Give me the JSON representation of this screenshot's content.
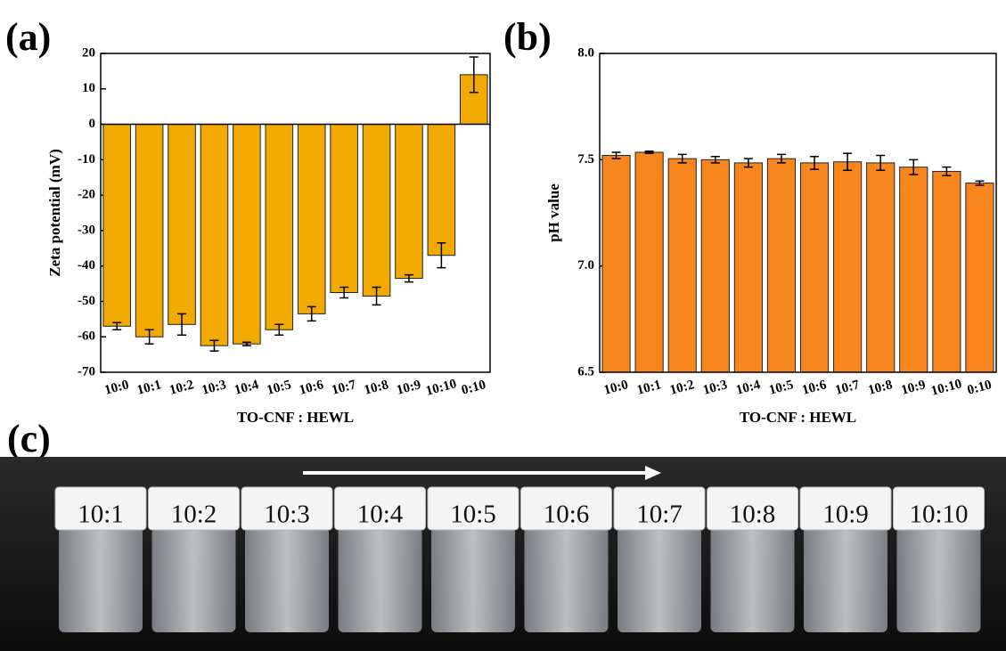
{
  "chart_data": [
    {
      "type": "bar",
      "panel_label": "(a)",
      "x_label": "TO-CNF : HEWL",
      "y_label": "Zeta potential (mV)",
      "categories": [
        "10:0",
        "10:1",
        "10:2",
        "10:3",
        "10:4",
        "10:5",
        "10:6",
        "10:7",
        "10:8",
        "10:9",
        "10:10",
        "0:10"
      ],
      "values": [
        -57,
        -60,
        -56.5,
        -62.5,
        -62,
        -58,
        -53.5,
        -47.5,
        -48.5,
        -43.5,
        -37,
        14
      ],
      "errors": [
        1,
        2,
        3,
        1.5,
        0.5,
        1.5,
        2,
        1.5,
        2.5,
        1,
        3.5,
        5
      ],
      "color": "#f2aa00",
      "ylim": [
        -70,
        20
      ],
      "yticks": [
        -70,
        -60,
        -50,
        -40,
        -30,
        -20,
        -10,
        0,
        10,
        20
      ]
    },
    {
      "type": "bar",
      "panel_label": "(b)",
      "x_label": "TO-CNF : HEWL",
      "y_label": "pH value",
      "categories": [
        "10:0",
        "10:1",
        "10:2",
        "10:3",
        "10:4",
        "10:5",
        "10:6",
        "10:7",
        "10:8",
        "10:9",
        "10:10",
        "0:10"
      ],
      "values": [
        7.52,
        7.535,
        7.505,
        7.5,
        7.485,
        7.505,
        7.485,
        7.49,
        7.485,
        7.465,
        7.445,
        7.39
      ],
      "errors": [
        0.015,
        0.005,
        0.02,
        0.015,
        0.02,
        0.02,
        0.03,
        0.04,
        0.035,
        0.035,
        0.02,
        0.01
      ],
      "color": "#f7861d",
      "ylim": [
        6.5,
        8.0
      ],
      "yticks": [
        6.5,
        {
          "value": 7,
          "label": "7.0"
        },
        7.5,
        {
          "value": 8,
          "label": "8.0"
        }
      ]
    }
  ],
  "photo": {
    "panel_label": "(c)",
    "vial_labels": [
      "10:1",
      "10:2",
      "10:3",
      "10:4",
      "10:5",
      "10:6",
      "10:7",
      "10:8",
      "10:9",
      "10:10"
    ]
  }
}
